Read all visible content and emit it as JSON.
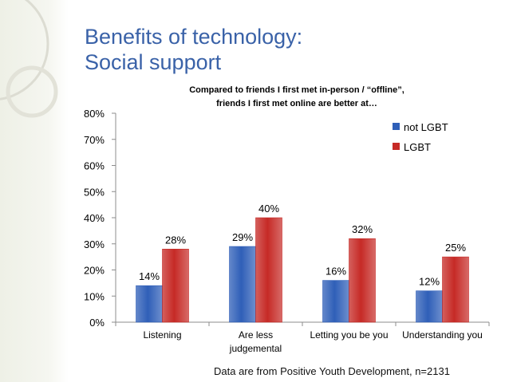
{
  "slide": {
    "title_line1": "Benefits of technology:",
    "title_line2": "Social support",
    "footnote": "Data are from Positive Youth Development, n=2131"
  },
  "chart_data": {
    "type": "bar",
    "title_line1": "Compared to friends I first met in-person / “offline”,",
    "title_line2": "friends I first met online are better at…",
    "categories": [
      [
        "Listening"
      ],
      [
        "Are less",
        "judgemental"
      ],
      [
        "Letting you be you"
      ],
      [
        "Understanding you"
      ]
    ],
    "series": [
      {
        "name": "not LGBT",
        "values": [
          14,
          29,
          16,
          12
        ],
        "labels": [
          "14%",
          "29%",
          "16%",
          "12%"
        ],
        "color": "#2f5fb8"
      },
      {
        "name": "LGBT",
        "values": [
          28,
          40,
          32,
          25
        ],
        "labels": [
          "28%",
          "40%",
          "32%",
          "25%"
        ],
        "color": "#c62a26"
      }
    ],
    "ylim": [
      0,
      80
    ],
    "yticks": [
      "0%",
      "10%",
      "20%",
      "30%",
      "40%",
      "50%",
      "60%",
      "70%",
      "80%"
    ],
    "ytick_values": [
      0,
      10,
      20,
      30,
      40,
      50,
      60,
      70,
      80
    ],
    "legend_position": "top-right",
    "grid": false
  }
}
